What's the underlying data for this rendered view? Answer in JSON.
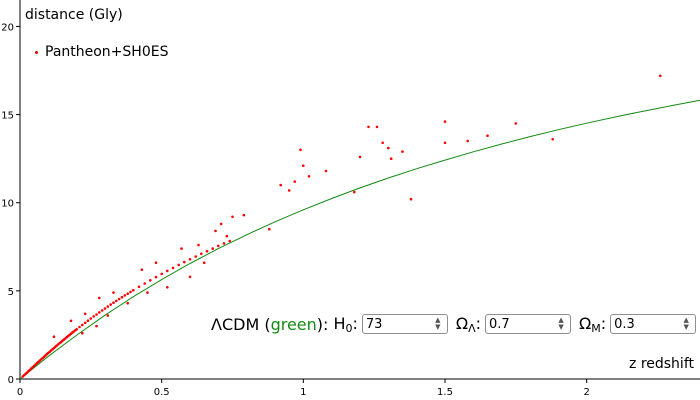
{
  "chart_data": {
    "type": "scatter",
    "ylabel": "distance (Gly)",
    "xlabel": "z redshift",
    "xlim": [
      0,
      2.4
    ],
    "ylim": [
      0,
      21.5
    ],
    "xticks": [
      "0",
      "0.5",
      "1",
      "1.5",
      "2"
    ],
    "xtick_values": [
      0,
      0.5,
      1,
      1.5,
      2
    ],
    "yticks": [
      "0",
      "5",
      "10",
      "15",
      "20"
    ],
    "ytick_values": [
      0,
      5,
      10,
      15,
      20
    ],
    "legend": {
      "placement": "top-left",
      "entries": [
        {
          "label": "Pantheon+SH0ES",
          "color": "#ff0000"
        }
      ]
    },
    "series": [
      {
        "name": "Pantheon+SH0ES",
        "style": "points",
        "color": "#ff0000",
        "x": [
          0.01,
          0.015,
          0.02,
          0.025,
          0.03,
          0.035,
          0.04,
          0.045,
          0.05,
          0.055,
          0.06,
          0.065,
          0.07,
          0.075,
          0.08,
          0.085,
          0.09,
          0.095,
          0.1,
          0.105,
          0.11,
          0.115,
          0.12,
          0.125,
          0.13,
          0.135,
          0.14,
          0.145,
          0.15,
          0.155,
          0.16,
          0.165,
          0.17,
          0.175,
          0.18,
          0.185,
          0.19,
          0.195,
          0.2,
          0.21,
          0.22,
          0.23,
          0.24,
          0.25,
          0.26,
          0.27,
          0.28,
          0.29,
          0.3,
          0.31,
          0.32,
          0.33,
          0.34,
          0.35,
          0.36,
          0.37,
          0.38,
          0.39,
          0.4,
          0.42,
          0.44,
          0.46,
          0.48,
          0.5,
          0.52,
          0.54,
          0.56,
          0.58,
          0.6,
          0.62,
          0.64,
          0.66,
          0.68,
          0.7,
          0.72,
          0.74,
          0.75,
          0.79,
          0.88,
          0.92,
          0.95,
          0.97,
          0.99,
          1.0,
          1.02,
          1.08,
          1.18,
          1.2,
          1.23,
          1.26,
          1.28,
          1.3,
          1.31,
          1.35,
          1.38,
          1.5,
          1.5,
          1.58,
          1.65,
          1.75,
          1.88,
          2.26,
          0.12,
          0.18,
          0.23,
          0.28,
          0.33,
          0.43,
          0.48,
          0.57,
          0.63,
          0.69,
          0.71,
          0.73,
          0.22,
          0.27,
          0.31,
          0.38,
          0.45,
          0.52,
          0.6,
          0.65
        ],
        "y": [
          0.15,
          0.22,
          0.3,
          0.37,
          0.45,
          0.52,
          0.6,
          0.67,
          0.75,
          0.82,
          0.9,
          0.97,
          1.05,
          1.12,
          1.19,
          1.26,
          1.34,
          1.41,
          1.48,
          1.55,
          1.62,
          1.69,
          1.76,
          1.83,
          1.9,
          1.97,
          2.04,
          2.1,
          2.17,
          2.24,
          2.3,
          2.37,
          2.44,
          2.5,
          2.57,
          2.63,
          2.7,
          2.76,
          2.82,
          2.95,
          3.07,
          3.19,
          3.31,
          3.43,
          3.55,
          3.66,
          3.78,
          3.89,
          4.0,
          4.11,
          4.22,
          4.33,
          4.43,
          4.54,
          4.64,
          4.74,
          4.84,
          4.94,
          5.04,
          5.23,
          5.42,
          5.6,
          5.78,
          5.96,
          6.13,
          6.3,
          6.47,
          6.63,
          6.79,
          6.95,
          7.1,
          7.25,
          7.4,
          7.55,
          7.69,
          7.83,
          9.2,
          9.3,
          8.5,
          11.0,
          10.7,
          11.2,
          13.0,
          12.1,
          11.5,
          11.8,
          10.6,
          12.6,
          14.3,
          14.3,
          13.4,
          13.1,
          12.5,
          12.9,
          10.2,
          14.6,
          13.4,
          13.5,
          13.8,
          14.5,
          13.6,
          17.2,
          2.4,
          3.3,
          3.7,
          4.6,
          4.9,
          6.2,
          6.6,
          7.4,
          7.6,
          8.4,
          8.8,
          8.1,
          2.6,
          3.0,
          3.6,
          4.3,
          4.9,
          5.2,
          5.8,
          6.6
        ]
      },
      {
        "name": "",
        "style": "line",
        "color": "#138a13",
        "x": [
          0,
          0.1,
          0.2,
          0.3,
          0.4,
          0.5,
          0.6,
          0.7,
          0.8,
          0.9,
          1.0,
          1.1,
          1.2,
          1.3,
          1.4,
          1.5,
          1.6,
          1.7,
          1.8,
          1.9,
          2.0,
          2.1,
          2.2,
          2.3,
          2.4
        ],
        "y": [
          0,
          1.29,
          2.49,
          3.62,
          4.67,
          5.64,
          6.55,
          7.4,
          8.18,
          8.92,
          9.6,
          10.24,
          10.84,
          11.4,
          11.93,
          12.42,
          12.89,
          13.33,
          13.75,
          14.14,
          14.51,
          14.86,
          15.19,
          15.51,
          15.81
        ]
      }
    ]
  },
  "controls": {
    "model_prefix": "ΛCDM (",
    "model_color_word": "green",
    "model_suffix": "):",
    "h0_label": "H",
    "h0_sub": "0",
    "h0_value": "73",
    "omega_lambda_label": "Ω",
    "omega_lambda_sub": "Λ",
    "omega_lambda_value": "0.7",
    "omega_m_label": "Ω",
    "omega_m_sub": "M",
    "omega_m_value": "0.3"
  }
}
